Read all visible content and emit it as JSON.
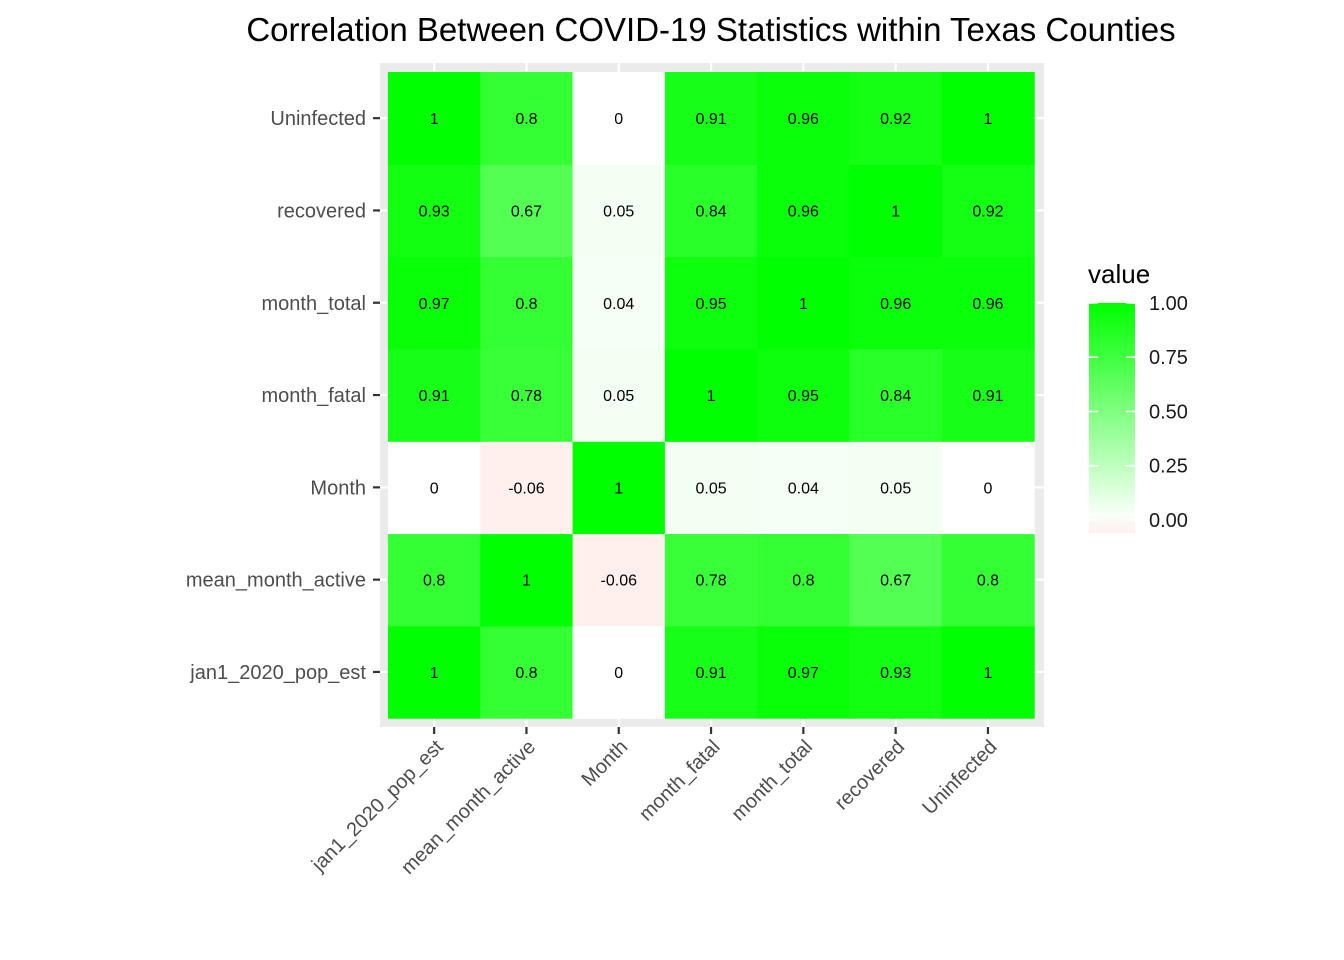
{
  "chart_data": {
    "type": "heatmap",
    "title": "Correlation Between COVID-19 Statistics within Texas Counties",
    "xlabel": "",
    "ylabel": "",
    "x_categories": [
      "jan1_2020_pop_est",
      "mean_month_active",
      "Month",
      "month_fatal",
      "month_total",
      "recovered",
      "Uninfected"
    ],
    "y_categories": [
      "jan1_2020_pop_est",
      "mean_month_active",
      "Month",
      "month_fatal",
      "month_total",
      "recovered",
      "Uninfected"
    ],
    "matrix": [
      [
        1,
        0.8,
        0,
        0.91,
        0.97,
        0.93,
        1
      ],
      [
        0.8,
        1,
        -0.06,
        0.78,
        0.8,
        0.67,
        0.8
      ],
      [
        0,
        -0.06,
        1,
        0.05,
        0.04,
        0.05,
        0
      ],
      [
        0.91,
        0.78,
        0.05,
        1,
        0.95,
        0.84,
        0.91
      ],
      [
        0.97,
        0.8,
        0.04,
        0.95,
        1,
        0.96,
        0.96
      ],
      [
        0.93,
        0.67,
        0.05,
        0.84,
        0.96,
        1,
        0.92
      ],
      [
        1,
        0.8,
        0,
        0.91,
        0.96,
        0.92,
        1
      ]
    ],
    "legend": {
      "title": "value",
      "breaks": [
        "1.00",
        "0.75",
        "0.50",
        "0.25",
        "0.00"
      ],
      "break_values": [
        1,
        0.75,
        0.5,
        0.25,
        0
      ],
      "range": [
        -0.06,
        1
      ],
      "position": "right"
    },
    "colors": {
      "low": "#fff0ee",
      "mid": "#ffffff",
      "high": "#00ff00",
      "panel": "#ebebeb",
      "grid": "#ffffff"
    },
    "grid": true
  }
}
